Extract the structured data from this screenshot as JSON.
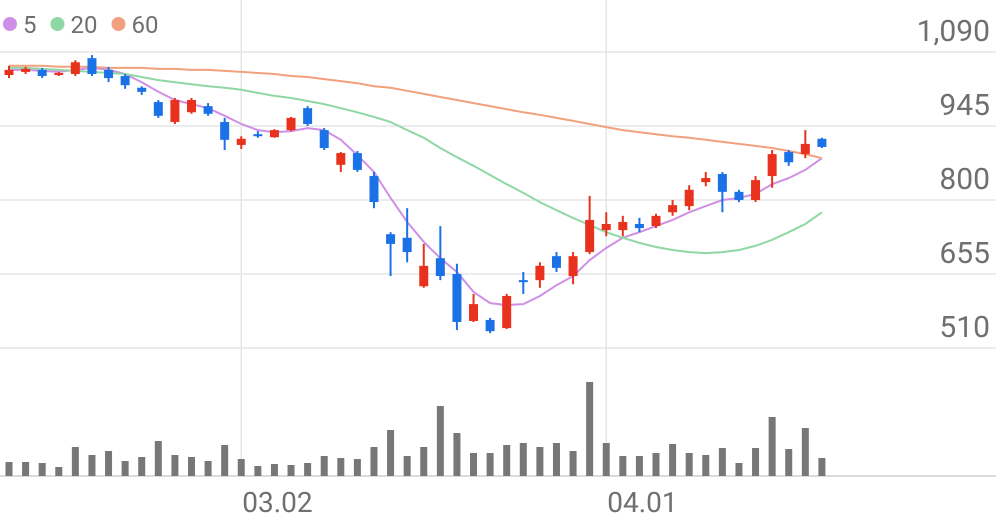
{
  "chart_data": {
    "type": "candlestick",
    "categories": [
      null,
      null,
      null,
      null,
      null,
      null,
      null,
      null,
      null,
      null,
      null,
      null,
      null,
      null,
      "03.02",
      null,
      null,
      null,
      null,
      null,
      null,
      null,
      null,
      null,
      null,
      null,
      null,
      null,
      null,
      null,
      null,
      null,
      null,
      null,
      null,
      null,
      "04.01",
      null,
      null,
      null,
      null,
      null,
      null,
      null,
      null,
      null,
      null,
      null,
      null,
      null
    ],
    "open": [
      1045,
      1051,
      1055,
      1045,
      1047,
      1078,
      1055,
      1043,
      1020,
      992,
      953,
      972,
      984,
      953,
      908,
      929,
      923,
      937,
      980,
      937,
      869,
      892,
      847,
      733,
      726,
      631,
      686,
      655,
      563,
      565,
      549,
      643,
      643,
      690,
      651,
      698,
      741,
      741,
      753,
      749,
      776,
      788,
      835,
      851,
      816,
      800,
      847,
      894,
      890,
      920
    ],
    "high": [
      1063,
      1061,
      1059,
      1051,
      1074,
      1084,
      1061,
      1047,
      1023,
      996,
      1000,
      1000,
      990,
      961,
      925,
      935,
      939,
      963,
      984,
      941,
      894,
      896,
      855,
      737,
      784,
      714,
      749,
      675,
      616,
      569,
      616,
      659,
      678,
      698,
      698,
      808,
      776,
      769,
      765,
      773,
      800,
      829,
      855,
      855,
      820,
      847,
      898,
      898,
      937,
      922
    ],
    "low": [
      1039,
      1047,
      1039,
      1043,
      1043,
      1043,
      1031,
      1018,
      1006,
      961,
      949,
      969,
      965,
      898,
      900,
      922,
      922,
      935,
      945,
      898,
      855,
      855,
      784,
      651,
      678,
      628,
      643,
      545,
      561,
      539,
      547,
      616,
      628,
      659,
      635,
      694,
      729,
      729,
      737,
      745,
      769,
      780,
      827,
      776,
      796,
      796,
      824,
      867,
      882,
      902
    ],
    "close": [
      1055,
      1057,
      1043,
      1049,
      1070,
      1047,
      1039,
      1025,
      1012,
      965,
      996,
      996,
      969,
      918,
      920,
      925,
      937,
      961,
      949,
      902,
      892,
      859,
      796,
      714,
      698,
      671,
      651,
      561,
      596,
      543,
      612,
      639,
      671,
      667,
      690,
      761,
      753,
      757,
      745,
      769,
      790,
      820,
      843,
      816,
      800,
      839,
      890,
      874,
      910,
      904
    ],
    "up_color": "#e8321e",
    "down_color": "#1b72e6",
    "series": [
      {
        "name": "5",
        "color": "#d08fe6",
        "values": [
          1055,
          1055,
          1053,
          1051,
          1055,
          1059,
          1055,
          1047,
          1031,
          1012,
          996,
          988,
          980,
          965,
          949,
          937,
          933,
          935,
          941,
          937,
          918,
          888,
          855,
          804,
          757,
          718,
          686,
          659,
          620,
          598,
          594,
          596,
          612,
          633,
          651,
          682,
          706,
          726,
          737,
          749,
          761,
          776,
          788,
          800,
          804,
          812,
          831,
          843,
          859,
          882
        ]
      },
      {
        "name": "20",
        "color": "#8fd8a6",
        "values": [
          1059,
          1059,
          1057,
          1055,
          1053,
          1051,
          1049,
          1047,
          1041,
          1035,
          1031,
          1027,
          1023,
          1020,
          1016,
          1010,
          1004,
          1000,
          994,
          988,
          980,
          972,
          963,
          953,
          937,
          922,
          902,
          884,
          867,
          849,
          831,
          814,
          796,
          780,
          765,
          751,
          737,
          726,
          716,
          708,
          702,
          698,
          696,
          698,
          702,
          710,
          722,
          737,
          753,
          776
        ]
      },
      {
        "name": "60",
        "color": "#f2a17e",
        "values": [
          1063,
          1063,
          1063,
          1061,
          1061,
          1061,
          1059,
          1059,
          1059,
          1057,
          1057,
          1055,
          1055,
          1053,
          1051,
          1049,
          1047,
          1043,
          1041,
          1037,
          1033,
          1029,
          1023,
          1020,
          1014,
          1008,
          1002,
          996,
          990,
          984,
          978,
          972,
          967,
          961,
          955,
          949,
          943,
          937,
          933,
          929,
          925,
          922,
          918,
          914,
          910,
          906,
          902,
          896,
          890,
          882
        ]
      }
    ],
    "volume": [
      14,
      14,
      13,
      9,
      29,
      21,
      25,
      15,
      19,
      35,
      21,
      19,
      15,
      31,
      17,
      10,
      12,
      11,
      13,
      20,
      18,
      17,
      29,
      46,
      20,
      29,
      70,
      43,
      23,
      23,
      31,
      33,
      29,
      33,
      25,
      94,
      33,
      20,
      20,
      23,
      32,
      23,
      21,
      28,
      13,
      28,
      59,
      27,
      48,
      18
    ],
    "volume_color": "#777777",
    "ylim": [
      510,
      1192
    ],
    "yticks": [
      {
        "value": 1090,
        "label": "1,090"
      },
      945,
      800,
      655,
      510
    ],
    "grid": true
  }
}
